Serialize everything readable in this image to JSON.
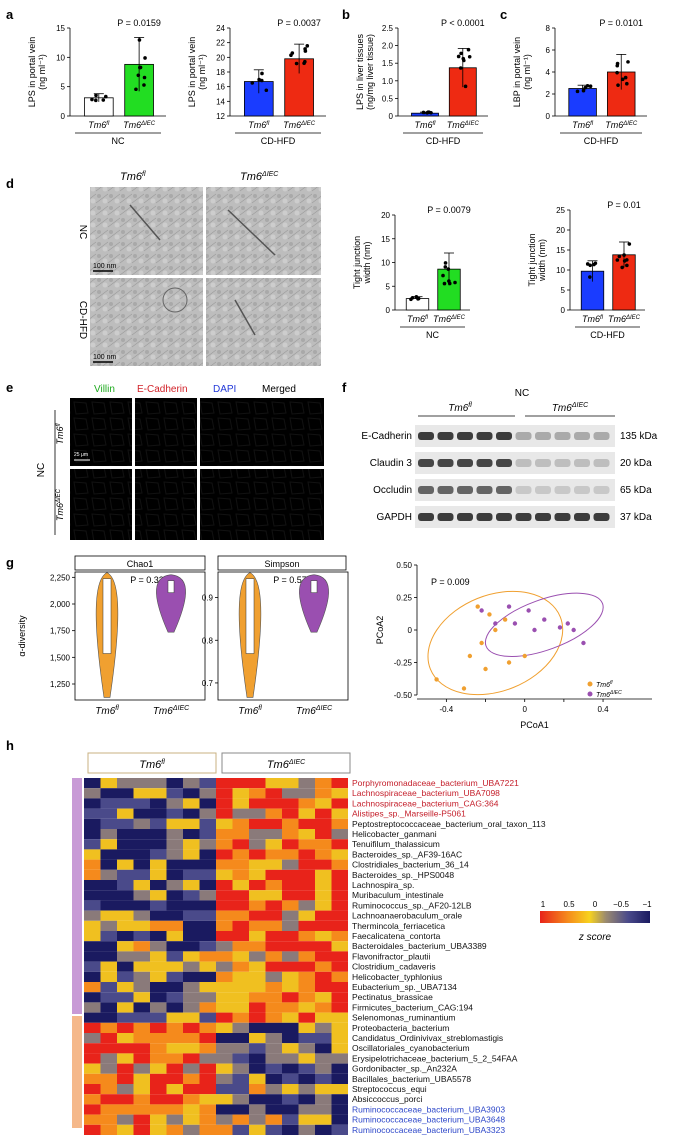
{
  "panel_letters": {
    "a": "a",
    "b": "b",
    "c": "c",
    "d": "d",
    "e": "e",
    "f": "f",
    "g": "g",
    "h": "h"
  },
  "groups": {
    "fl": "Tm6",
    "fl_sup": "fl",
    "iec": "Tm6",
    "iec_sup": "ΔIEC"
  },
  "diets": {
    "nc": "NC",
    "cdhfd": "CD-HFD"
  },
  "colors": {
    "white": "#ffffff",
    "green": "#22dd22",
    "blue": "#1a3cff",
    "red": "#ee2a12",
    "orange": "#f0a030",
    "purple": "#9a4fb0"
  },
  "panel_a1": {
    "ylabel_lines": [
      "LPS in portal vein",
      "(ng ml⁻¹)"
    ],
    "yticks": [
      "0",
      "5",
      "10",
      "15"
    ],
    "ylim": [
      0,
      15
    ],
    "pvalue": "P = 0.0159",
    "bars": [
      {
        "group": "fl",
        "value": 3.1,
        "err": 0.7,
        "color": "white"
      },
      {
        "group": "iec",
        "value": 8.8,
        "err": 4.6,
        "color": "green"
      }
    ],
    "diet": "NC"
  },
  "panel_a2": {
    "ylabel_lines": [
      "LPS in portal vein",
      "(ng ml⁻¹)"
    ],
    "yticks": [
      "12",
      "14",
      "16",
      "18",
      "20",
      "22",
      "24"
    ],
    "ylim": [
      12,
      24
    ],
    "pvalue": "P = 0.0037",
    "bars": [
      {
        "group": "fl",
        "value": 16.7,
        "err": 1.6,
        "color": "blue"
      },
      {
        "group": "iec",
        "value": 19.8,
        "err": 2.0,
        "color": "red"
      }
    ],
    "diet": "CD-HFD"
  },
  "panel_b": {
    "ylabel_lines": [
      "LPS in liver tissues",
      "(ng/mg liver tissue)"
    ],
    "yticks": [
      "0",
      "0.5",
      "1.0",
      "1.5",
      "2.0",
      "2.5"
    ],
    "ylim": [
      0,
      2.5
    ],
    "pvalue": "P < 0.0001",
    "bars": [
      {
        "group": "fl",
        "value": 0.08,
        "err": 0.03,
        "color": "blue"
      },
      {
        "group": "iec",
        "value": 1.37,
        "err": 0.55,
        "color": "red"
      }
    ],
    "diet": "CD-HFD"
  },
  "panel_c": {
    "ylabel_lines": [
      "LBP in portal vein",
      "(ng ml⁻¹)"
    ],
    "yticks": [
      "0",
      "2",
      "4",
      "6",
      "8"
    ],
    "ylim": [
      0,
      8
    ],
    "pvalue": "P = 0.0101",
    "bars": [
      {
        "group": "fl",
        "value": 2.5,
        "err": 0.3,
        "color": "blue"
      },
      {
        "group": "iec",
        "value": 4.0,
        "err": 1.6,
        "color": "red"
      }
    ],
    "diet": "CD-HFD"
  },
  "panel_d_images": {
    "col1": "Tm6",
    "col1_sup": "fl",
    "col2": "Tm6",
    "col2_sup": "ΔIEC",
    "row1": "NC",
    "row2": "CD-HFD",
    "scale": "100 nm"
  },
  "panel_d1": {
    "ylabel_lines": [
      "Tight junction",
      "width (nm)"
    ],
    "yticks": [
      "0",
      "5",
      "10",
      "15",
      "20"
    ],
    "ylim": [
      0,
      20
    ],
    "pvalue": "P = 0.0079",
    "bars": [
      {
        "group": "fl",
        "value": 2.4,
        "err": 0.4,
        "color": "white"
      },
      {
        "group": "iec",
        "value": 8.6,
        "err": 3.4,
        "color": "green"
      }
    ],
    "diet": "NC"
  },
  "panel_d2": {
    "ylabel_lines": [
      "Tight junction",
      "width (nm)"
    ],
    "yticks": [
      "0",
      "5",
      "10",
      "15",
      "20",
      "25"
    ],
    "ylim": [
      0,
      25
    ],
    "pvalue": "P = 0.01",
    "bars": [
      {
        "group": "fl",
        "value": 9.7,
        "err": 2.6,
        "color": "blue"
      },
      {
        "group": "iec",
        "value": 13.8,
        "err": 3.2,
        "color": "red"
      }
    ],
    "diet": "CD-HFD"
  },
  "panel_e": {
    "channels": [
      "Villin",
      "E-Cadherin",
      "DAPI",
      "Merged"
    ],
    "row1": "Tm6",
    "row1_sup": "fl",
    "row2": "Tm6",
    "row2_sup": "ΔIEC",
    "diet": "NC",
    "scale": "25 μm"
  },
  "panel_f": {
    "title": "NC",
    "group_fl": "Tm6",
    "group_fl_sup": "fl",
    "group_iec": "Tm6",
    "group_iec_sup": "ΔIEC",
    "blots": [
      {
        "name": "E-Cadherin",
        "size": "135 kDa",
        "fl": 0.85,
        "iec": 0.3
      },
      {
        "name": "Claudin 3",
        "size": "20 kDa",
        "fl": 0.8,
        "iec": 0.2
      },
      {
        "name": "Occludin",
        "size": "65 kDa",
        "fl": 0.65,
        "iec": 0.15
      },
      {
        "name": "GAPDH",
        "size": "37 kDa",
        "fl": 0.85,
        "iec": 0.85
      }
    ]
  },
  "panel_g1": {
    "title": "Chao1",
    "ylabel": "α-diversity",
    "yticks": [
      "1,250",
      "1,500",
      "1,750",
      "2,000",
      "2,250"
    ],
    "ylim": [
      1100,
      2300
    ],
    "pvalue": "P = 0.32"
  },
  "panel_g2": {
    "title": "Simpson",
    "yticks": [
      "0.7",
      "0.8",
      "0.9"
    ],
    "ylim": [
      0.66,
      0.96
    ],
    "pvalue": "P = 0.57"
  },
  "panel_g3": {
    "xlabel": "PCoA1",
    "ylabel": "PCoA2",
    "xticks": [
      "-0.4",
      "-0.2",
      "0",
      "0.2",
      "0.4"
    ],
    "yticks": [
      "0.50",
      "0.25",
      "0",
      "-0.25",
      "-0.50"
    ],
    "pvalue": "P = 0.009",
    "legend_fl": "Tm6",
    "legend_fl_sup": "fl",
    "legend_iec": "Tm6",
    "legend_iec_sup": "ΔIEC"
  },
  "panel_h": {
    "col_fl": "Tm6",
    "col_fl_sup": "fl",
    "col_iec": "Tm6",
    "col_iec_sup": "ΔIEC",
    "legend_title": "z score",
    "legend_ticks": [
      "1",
      "0.5",
      "0",
      "−0.5",
      "−1"
    ],
    "species": [
      {
        "name": "Porphyromonadaceae_bacterium_UBA7221",
        "color": "#c41e2a"
      },
      {
        "name": "Lachnospiraceae_bacterium_UBA7098",
        "color": "#c41e2a"
      },
      {
        "name": "Lachnospiraceae_bacterium_CAG:364",
        "color": "#c41e2a"
      },
      {
        "name": "Alistipes_sp._Marseille-P5061",
        "color": "#c41e2a"
      },
      {
        "name": "Peptostreptococcaceae_bacterium_oral_taxon_113",
        "color": "#111111"
      },
      {
        "name": "Helicobacter_ganmani",
        "color": "#111111"
      },
      {
        "name": "Tenuifilum_thalassicum",
        "color": "#111111"
      },
      {
        "name": "Bacteroides_sp._AF39-16AC",
        "color": "#111111"
      },
      {
        "name": "Clostridiales_bacterium_36_14",
        "color": "#111111"
      },
      {
        "name": "Bacteroides_sp._HPS0048",
        "color": "#111111"
      },
      {
        "name": "Lachnospira_sp.",
        "color": "#111111"
      },
      {
        "name": "Muribaculum_intestinale",
        "color": "#111111"
      },
      {
        "name": "Ruminococcus_sp._AF20-12LB",
        "color": "#111111"
      },
      {
        "name": "Lachnoanaerobaculum_orale",
        "color": "#111111"
      },
      {
        "name": "Thermincola_ferriacetica",
        "color": "#111111"
      },
      {
        "name": "Faecalicatena_contorta",
        "color": "#111111"
      },
      {
        "name": "Bacteroidales_bacterium_UBA3389",
        "color": "#111111"
      },
      {
        "name": "Flavonifractor_plautii",
        "color": "#111111"
      },
      {
        "name": "Clostridium_cadaveris",
        "color": "#111111"
      },
      {
        "name": "Helicobacter_typhlonius",
        "color": "#111111"
      },
      {
        "name": "Eubacterium_sp._UBA7134",
        "color": "#111111"
      },
      {
        "name": "Pectinatus_brassicae",
        "color": "#111111"
      },
      {
        "name": "Firmicutes_bacterium_CAG:194",
        "color": "#111111"
      },
      {
        "name": "Selenomonas_ruminantium",
        "color": "#111111"
      },
      {
        "name": "Proteobacteria_bacterium",
        "color": "#111111"
      },
      {
        "name": "Candidatus_Ordinivivax_streblomastigis",
        "color": "#111111"
      },
      {
        "name": "Oscillatoriales_cyanobacterium",
        "color": "#111111"
      },
      {
        "name": "Erysipelotrichaceae_bacterium_5_2_54FAA",
        "color": "#111111"
      },
      {
        "name": "Gordonibacter_sp._An232A",
        "color": "#111111"
      },
      {
        "name": "Bacillales_bacterium_UBA5578",
        "color": "#111111"
      },
      {
        "name": "Streptococcus_equi",
        "color": "#111111"
      },
      {
        "name": "Absiccoccus_porci",
        "color": "#111111"
      },
      {
        "name": "Ruminococcaceae_bacterium_UBA3903",
        "color": "#2d47c9"
      },
      {
        "name": "Ruminococcaceae_bacterium_UBA3648",
        "color": "#2d47c9"
      },
      {
        "name": "Ruminococcaceae_bacterium_UBA3323",
        "color": "#2d47c9"
      }
    ]
  }
}
